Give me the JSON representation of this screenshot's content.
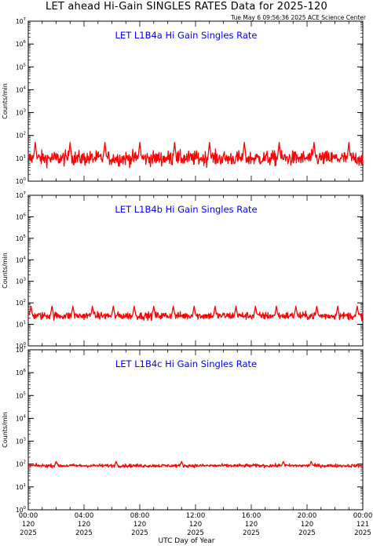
{
  "title": "LET ahead Hi-Gain SINGLES RATES Data for 2025-120",
  "timestamp": "Tue May  6 09:56:36 2025 ACE Science Center",
  "colors": {
    "trace": "#ff0000",
    "panel_title": "#0000ff",
    "axes": "#000000",
    "background": "#ffffff"
  },
  "chart_data": [
    {
      "type": "line",
      "title": "LET L1B4a Hi Gain Singles Rate",
      "ylabel": "Counts/min",
      "yscale": "log",
      "ylim": [
        1,
        10000000
      ],
      "yticks": [
        "10^0",
        "10^1",
        "10^2",
        "10^3",
        "10^4",
        "10^5",
        "10^6",
        "10^7"
      ],
      "xlim": [
        0,
        24
      ],
      "baseline": 10,
      "noise_log_spread": 0.22,
      "spike_peak": 50,
      "spike_hours": [
        0.5,
        3.0,
        5.5,
        8.0,
        10.5,
        13.0,
        15.5,
        18.0,
        20.5,
        23.0
      ],
      "minimum_dips": 3
    },
    {
      "type": "line",
      "title": "LET L1B4b Hi Gain Singles Rate",
      "ylabel": "Counts/min",
      "yscale": "log",
      "ylim": [
        1,
        10000000
      ],
      "yticks": [
        "10^0",
        "10^1",
        "10^2",
        "10^3",
        "10^4",
        "10^5",
        "10^6",
        "10^7"
      ],
      "xlim": [
        0,
        24
      ],
      "baseline": 25,
      "noise_log_spread": 0.12,
      "spike_peak": 70,
      "spike_hours": [
        0.2,
        1.7,
        3.2,
        4.6,
        6.1,
        7.6,
        9.0,
        10.4,
        11.9,
        13.4,
        14.9,
        16.3,
        17.8,
        19.2,
        20.7,
        22.2,
        23.6
      ],
      "minimum_dips": 12
    },
    {
      "type": "line",
      "title": "LET L1B4c Hi Gain Singles Rate",
      "ylabel": "Counts/min",
      "yscale": "log",
      "ylim": [
        1,
        10000000
      ],
      "yticks": [
        "10^0",
        "10^1",
        "10^2",
        "10^3",
        "10^4",
        "10^5",
        "10^6",
        "10^7"
      ],
      "xlim": [
        0,
        24
      ],
      "baseline": 85,
      "noise_log_spread": 0.05,
      "spike_peak": 130,
      "spike_hours": [
        2.0,
        6.3,
        11.0,
        18.3,
        20.3
      ],
      "minimum_dips": 60
    }
  ],
  "xaxis": {
    "title": "UTC Day of Year",
    "ticks": [
      {
        "hour": 0,
        "time": "00:00",
        "doy": "120",
        "year": "2025"
      },
      {
        "hour": 4,
        "time": "04:00",
        "doy": "120",
        "year": "2025"
      },
      {
        "hour": 8,
        "time": "08:00",
        "doy": "120",
        "year": "2025"
      },
      {
        "hour": 12,
        "time": "12:00",
        "doy": "120",
        "year": "2025"
      },
      {
        "hour": 16,
        "time": "16:00",
        "doy": "120",
        "year": "2025"
      },
      {
        "hour": 20,
        "time": "20:00",
        "doy": "120",
        "year": "2025"
      },
      {
        "hour": 24,
        "time": "00:00",
        "doy": "121",
        "year": "2025"
      }
    ]
  }
}
